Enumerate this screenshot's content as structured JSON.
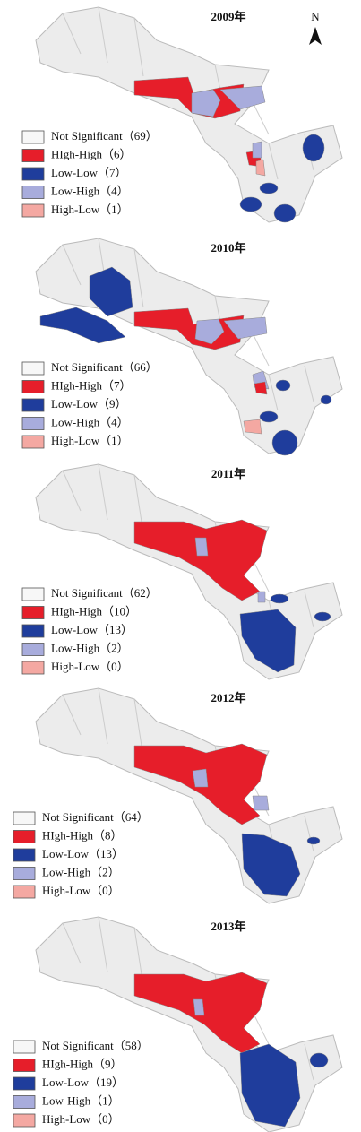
{
  "panels": [
    {
      "title": "2009年",
      "north": "N",
      "legend": [
        "Not Significant（69）",
        "HIgh-High（6）",
        "Low-Low（7）",
        "Low-High（4）",
        "High-Low（1）"
      ]
    },
    {
      "title": "2010年",
      "legend": [
        "Not Significant（66）",
        "HIgh-High（7）",
        "Low-Low（9）",
        "Low-High（4）",
        "High-Low（1）"
      ]
    },
    {
      "title": "2011年",
      "legend": [
        "Not Significant（62）",
        "HIgh-High（10）",
        "Low-Low（13）",
        "Low-High（2）",
        "High-Low（0）"
      ]
    },
    {
      "title": "2012年",
      "legend": [
        "Not Significant（64）",
        "HIgh-High（8）",
        "Low-Low（13）",
        "Low-High（2）",
        "High-Low（0）"
      ]
    },
    {
      "title": "2013年",
      "legend": [
        "Not Significant（58）",
        "HIgh-High（9）",
        "Low-Low（19）",
        "Low-High（1）",
        "High-Low（0）"
      ]
    }
  ],
  "legend_colors": [
    "#f7f7f7",
    "#e61e2a",
    "#1f3d9c",
    "#a8acdc",
    "#f4a8a2"
  ]
}
